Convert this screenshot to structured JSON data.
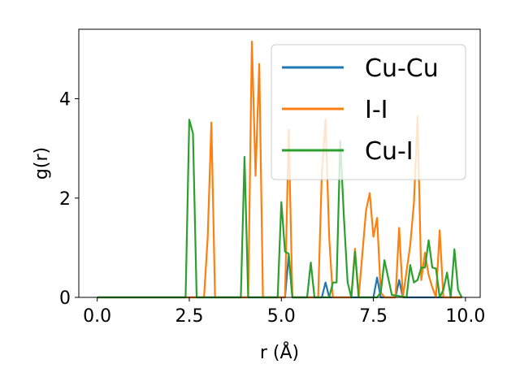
{
  "chart_data": {
    "type": "line",
    "xlabel": "r (Å)",
    "ylabel": "g(r)",
    "xlim": [
      -0.5,
      10.4
    ],
    "ylim": [
      0,
      5.4
    ],
    "xticks": [
      0.0,
      2.5,
      5.0,
      7.5,
      10.0
    ],
    "xtick_labels": [
      "0.0",
      "2.5",
      "5.0",
      "7.5",
      "10.0"
    ],
    "yticks": [
      0,
      2,
      4
    ],
    "ytick_labels": [
      "0",
      "2",
      "4"
    ],
    "grid": false,
    "legend_position": "top-right",
    "series": [
      {
        "name": "Cu-Cu",
        "color": "#1f77b4",
        "x": [
          0.0,
          5.1,
          5.2,
          5.3,
          6.1,
          6.2,
          6.3,
          7.5,
          7.6,
          7.7,
          8.1,
          8.2,
          8.3,
          9.9
        ],
        "y": [
          0,
          0,
          0.85,
          0,
          0,
          0.3,
          0,
          0,
          0.4,
          0,
          0,
          0.35,
          0,
          0
        ]
      },
      {
        "name": "I-I",
        "color": "#ff7f0e",
        "x": [
          0.0,
          2.9,
          3.0,
          3.1,
          3.2,
          4.1,
          4.2,
          4.3,
          4.4,
          4.5,
          5.1,
          5.2,
          5.3,
          6.0,
          6.1,
          6.2,
          6.3,
          6.4,
          6.9,
          7.0,
          7.1,
          7.3,
          7.4,
          7.5,
          7.6,
          7.7,
          7.8,
          8.1,
          8.2,
          8.3,
          8.5,
          8.6,
          8.7,
          8.8,
          8.9,
          9.0,
          9.1,
          9.2,
          9.3,
          9.4,
          9.9
        ],
        "y": [
          0,
          0,
          1.2,
          3.52,
          0,
          0,
          5.15,
          2.45,
          4.7,
          0,
          0,
          3.38,
          0,
          0,
          2.5,
          3.58,
          1.2,
          0,
          0,
          0.98,
          0,
          1.75,
          2.1,
          1.22,
          1.6,
          0.1,
          0,
          0,
          1.4,
          0,
          1.05,
          1.9,
          3.65,
          0.35,
          0.9,
          0.45,
          0.2,
          0,
          1.35,
          0,
          0
        ]
      },
      {
        "name": "Cu-I",
        "color": "#2ca02c",
        "x": [
          0.0,
          2.4,
          2.5,
          2.6,
          2.7,
          3.9,
          4.0,
          4.1,
          4.9,
          5.0,
          5.1,
          5.2,
          5.3,
          5.7,
          5.8,
          5.9,
          6.3,
          6.4,
          6.5,
          6.6,
          6.7,
          6.8,
          6.9,
          7.0,
          7.1,
          7.6,
          7.7,
          7.8,
          7.9,
          8.0,
          8.4,
          8.5,
          8.6,
          8.7,
          8.8,
          8.9,
          9.0,
          9.1,
          9.2,
          9.3,
          9.4,
          9.5,
          9.6,
          9.7,
          9.8,
          9.9
        ],
        "y": [
          0,
          0,
          3.58,
          3.3,
          0,
          0,
          2.83,
          0,
          0,
          1.92,
          0.92,
          0.88,
          0,
          0,
          0.7,
          0,
          0,
          0.3,
          0.3,
          3.15,
          1.6,
          0.3,
          0,
          0.92,
          0,
          0,
          0.1,
          0.75,
          0.4,
          0.05,
          0,
          0.65,
          0.3,
          0.35,
          0.6,
          0.6,
          1.15,
          0.6,
          0.58,
          0,
          0.15,
          0.5,
          0,
          0.97,
          0.15,
          0
        ]
      }
    ]
  }
}
